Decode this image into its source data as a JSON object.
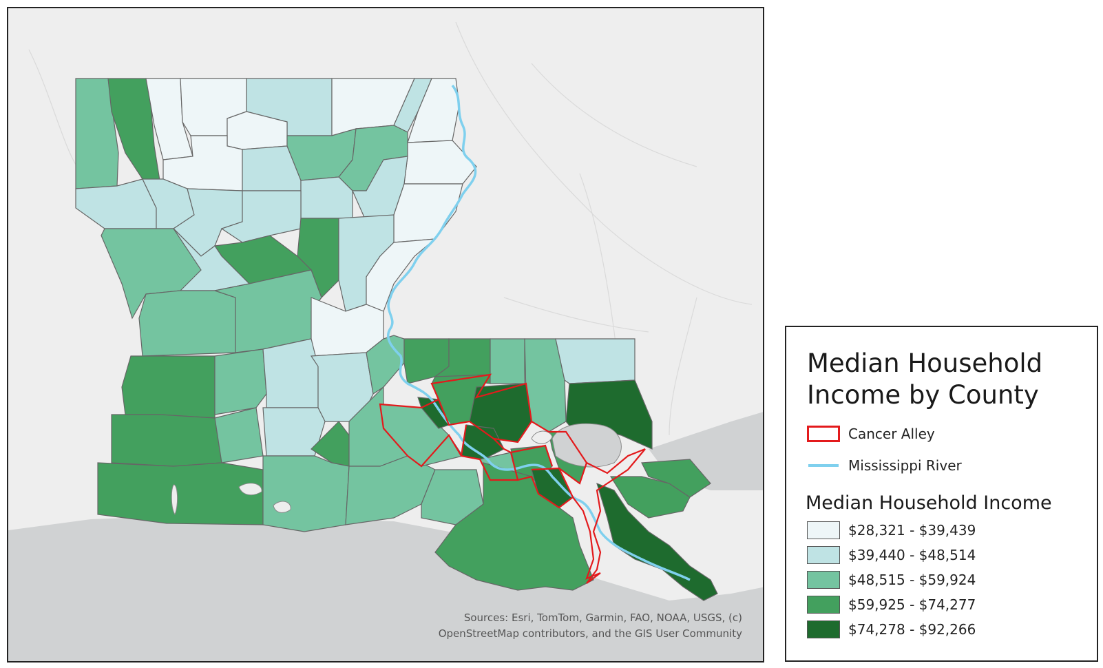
{
  "legend": {
    "title_line1": "Median Household",
    "title_line2": "Income by County",
    "overlay_items": [
      {
        "label": "Cancer Alley",
        "symbol": "red-outline",
        "color": "#e31a1c"
      },
      {
        "label": "Mississippi River",
        "symbol": "blue-line",
        "color": "#7fd0ee"
      }
    ],
    "income_title": "Median Household Income",
    "classes": [
      {
        "label": "$28,321 - $39,439",
        "color": "#eef6f8"
      },
      {
        "label": "$39,440 - $48,514",
        "color": "#bfe3e4"
      },
      {
        "label": "$48,515 - $59,924",
        "color": "#74c4a0"
      },
      {
        "label": "$59,925 - $74,277",
        "color": "#43a05e"
      },
      {
        "label": "$74,278 - $92,266",
        "color": "#1e6b2e"
      }
    ]
  },
  "attribution": {
    "line1": "Sources:  Esri, TomTom, Garmin, FAO, NOAA, USGS, (c)",
    "line2": "OpenStreetMap contributors, and the GIS User Community"
  },
  "colors": {
    "water": "#d0d2d3",
    "land_background": "#eeeeee",
    "county_border": "#666666"
  }
}
